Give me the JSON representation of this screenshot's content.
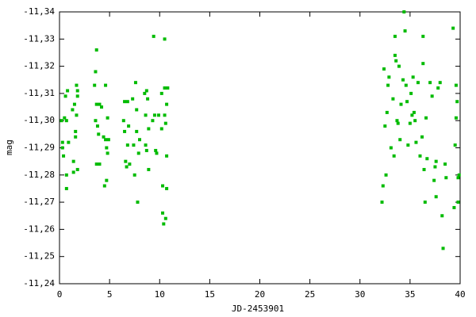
{
  "chart_data": {
    "type": "scatter",
    "xlabel": "JD-2453901",
    "ylabel": "mag",
    "color": "#00bb00",
    "xlim": [
      0,
      40
    ],
    "xticks": [
      0,
      5,
      10,
      15,
      20,
      25,
      30,
      35,
      40
    ],
    "ylim": [
      -11.24,
      -11.34
    ],
    "yticks": [
      {
        "value": -11.24,
        "label": "-11,24"
      },
      {
        "value": -11.25,
        "label": "-11,25"
      },
      {
        "value": -11.26,
        "label": "-11,26"
      },
      {
        "value": -11.27,
        "label": "-11,27"
      },
      {
        "value": -11.28,
        "label": "-11,28"
      },
      {
        "value": -11.29,
        "label": "-11,29"
      },
      {
        "value": -11.3,
        "label": "-11,30"
      },
      {
        "value": -11.31,
        "label": "-11,31"
      },
      {
        "value": -11.32,
        "label": "-11,32"
      },
      {
        "value": -11.33,
        "label": "-11,33"
      },
      {
        "value": -11.34,
        "label": "-11,34"
      }
    ],
    "x": [
      0.2,
      0.3,
      0.3,
      0.4,
      0.5,
      0.6,
      0.7,
      0.7,
      0.7,
      0.8,
      0.9,
      1.3,
      1.4,
      1.4,
      1.5,
      1.6,
      1.6,
      1.7,
      1.7,
      1.8,
      1.8,
      1.8,
      3.5,
      3.6,
      3.6,
      3.7,
      3.7,
      3.7,
      3.8,
      3.9,
      4.0,
      4.0,
      4.2,
      4.4,
      4.5,
      4.6,
      4.6,
      4.7,
      4.7,
      4.8,
      4.8,
      4.9,
      6.4,
      6.5,
      6.5,
      6.6,
      6.7,
      6.8,
      6.8,
      6.9,
      7.0,
      7.3,
      7.4,
      7.5,
      7.6,
      7.7,
      7.7,
      7.8,
      7.9,
      8.0,
      8.5,
      8.6,
      8.6,
      8.7,
      8.7,
      8.8,
      8.9,
      8.9,
      9.3,
      9.4,
      9.5,
      9.6,
      9.7,
      9.9,
      10.2,
      10.2,
      10.3,
      10.3,
      10.4,
      10.5,
      10.5,
      10.5,
      10.6,
      10.6,
      10.7,
      10.7,
      10.7,
      10.8,
      32.2,
      32.3,
      32.4,
      32.5,
      32.6,
      32.7,
      32.8,
      32.9,
      33.1,
      33.3,
      33.4,
      33.5,
      33.5,
      33.6,
      33.7,
      33.8,
      33.9,
      34.0,
      34.1,
      34.3,
      34.4,
      34.5,
      34.6,
      34.7,
      34.8,
      35.0,
      35.1,
      35.2,
      35.3,
      35.4,
      35.5,
      35.6,
      35.8,
      36.0,
      36.2,
      36.3,
      36.3,
      36.4,
      36.5,
      36.6,
      36.7,
      37.0,
      37.2,
      37.4,
      37.5,
      37.6,
      37.6,
      37.8,
      38.0,
      38.2,
      38.3,
      38.5,
      38.6,
      39.3,
      39.4,
      39.5,
      39.6,
      39.6,
      39.7,
      39.8,
      39.8,
      39.9
    ],
    "values": [
      -11.3,
      -11.292,
      -11.29,
      -11.287,
      -11.301,
      -11.309,
      -11.3,
      -11.28,
      -11.275,
      -11.311,
      -11.292,
      -11.304,
      -11.285,
      -11.281,
      -11.306,
      -11.294,
      -11.296,
      -11.313,
      -11.302,
      -11.311,
      -11.309,
      -11.282,
      -11.313,
      -11.3,
      -11.318,
      -11.326,
      -11.306,
      -11.284,
      -11.298,
      -11.295,
      -11.284,
      -11.306,
      -11.305,
      -11.294,
      -11.276,
      -11.313,
      -11.293,
      -11.29,
      -11.278,
      -11.301,
      -11.288,
      -11.293,
      -11.3,
      -11.307,
      -11.296,
      -11.285,
      -11.283,
      -11.291,
      -11.307,
      -11.298,
      -11.284,
      -11.308,
      -11.291,
      -11.28,
      -11.314,
      -11.296,
      -11.304,
      -11.27,
      -11.288,
      -11.293,
      -11.31,
      -11.302,
      -11.291,
      -11.289,
      -11.311,
      -11.308,
      -11.297,
      -11.282,
      -11.3,
      -11.331,
      -11.302,
      -11.289,
      -11.288,
      -11.302,
      -11.31,
      -11.297,
      -11.276,
      -11.266,
      -11.262,
      -11.302,
      -11.33,
      -11.312,
      -11.264,
      -11.299,
      -11.306,
      -11.287,
      -11.275,
      -11.312,
      -11.27,
      -11.276,
      -11.319,
      -11.298,
      -11.28,
      -11.303,
      -11.313,
      -11.316,
      -11.29,
      -11.308,
      -11.287,
      -11.331,
      -11.324,
      -11.322,
      -11.3,
      -11.299,
      -11.32,
      -11.293,
      -11.306,
      -11.315,
      -11.34,
      -11.333,
      -11.313,
      -11.307,
      -11.291,
      -11.299,
      -11.31,
      -11.302,
      -11.316,
      -11.303,
      -11.3,
      -11.292,
      -11.314,
      -11.287,
      -11.294,
      -11.321,
      -11.331,
      -11.282,
      -11.27,
      -11.301,
      -11.286,
      -11.314,
      -11.309,
      -11.278,
      -11.283,
      -11.285,
      -11.272,
      -11.312,
      -11.314,
      -11.265,
      -11.253,
      -11.284,
      -11.279,
      -11.334,
      -11.268,
      -11.291,
      -11.313,
      -11.301,
      -11.307,
      -11.279,
      -11.27,
      -11.28
    ]
  }
}
